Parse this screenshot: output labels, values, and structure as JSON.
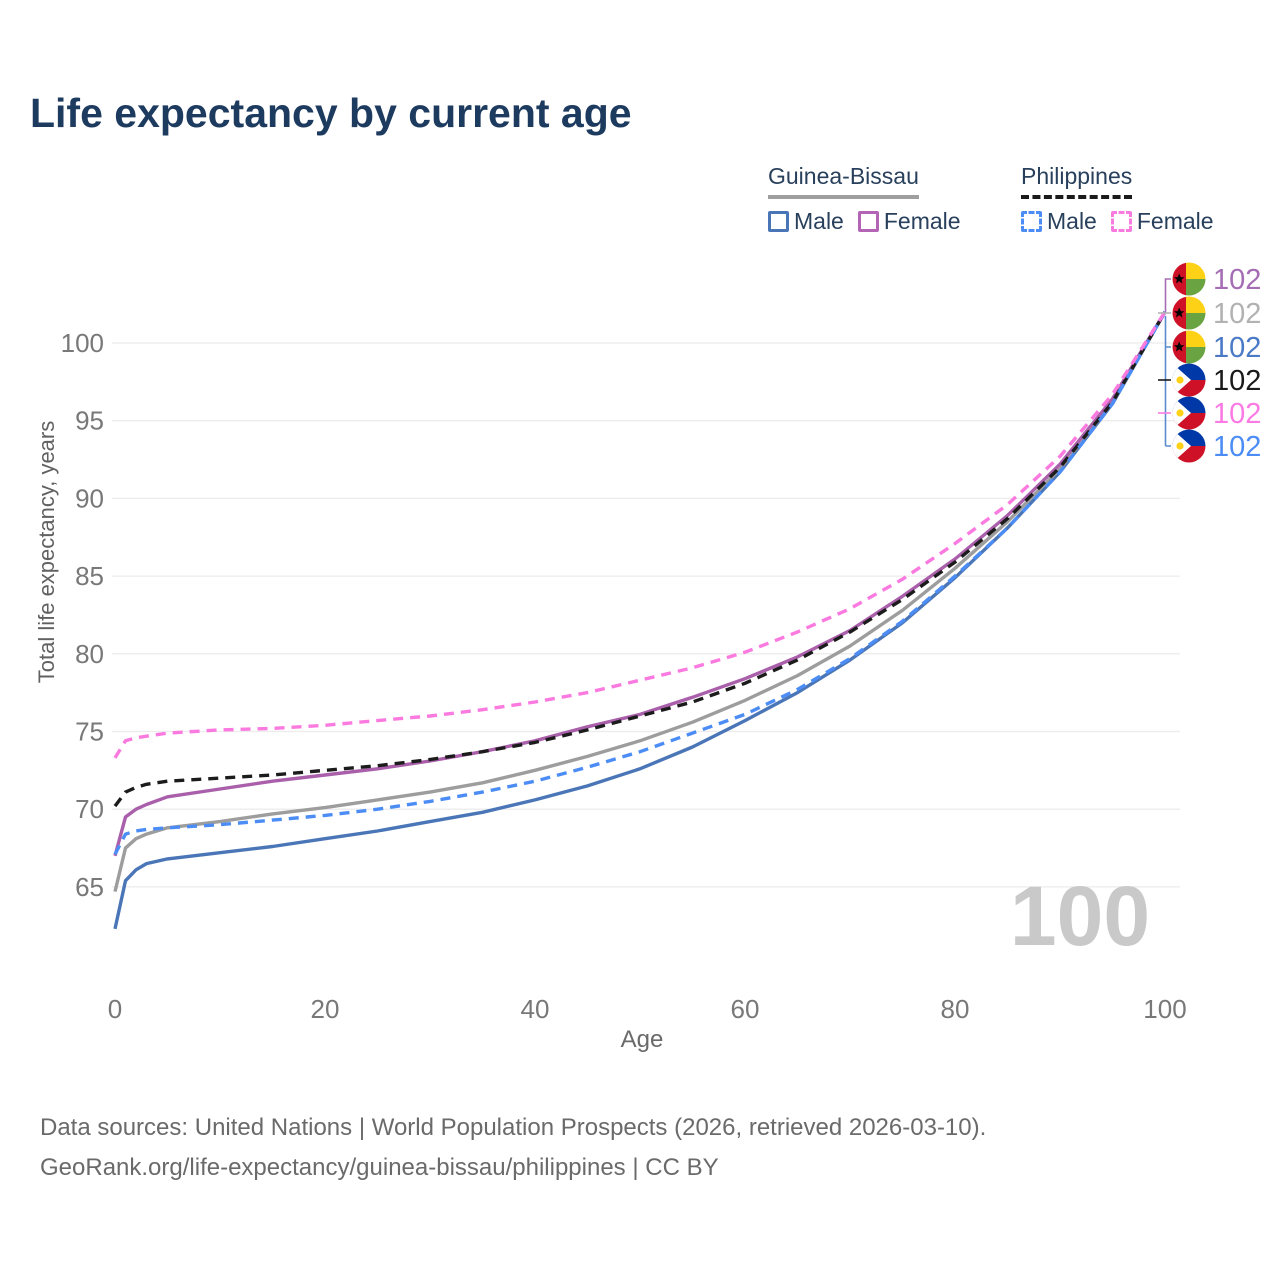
{
  "title": "Life expectancy by current age",
  "legend": {
    "groups": [
      {
        "label": "Guinea-Bissau",
        "underline": "solid",
        "items": [
          {
            "label": "Male",
            "color": "#4a76b8",
            "dash": false
          },
          {
            "label": "Female",
            "color": "#b464b4",
            "dash": false
          }
        ]
      },
      {
        "label": "Philippines",
        "underline": "dashed",
        "items": [
          {
            "label": "Male",
            "color": "#4c8df5",
            "dash": true
          },
          {
            "label": "Female",
            "color": "#fa7ae0",
            "dash": true
          }
        ]
      }
    ]
  },
  "watermark": "100",
  "footer": {
    "line1": "Data sources: United Nations | World Population Prospects (2026, retrieved 2026-03-10).",
    "line2": "GeoRank.org/life-expectancy/guinea-bissau/philippines | CC BY"
  },
  "chart_data": {
    "type": "line",
    "title": "Life expectancy by current age",
    "xlabel": "Age",
    "ylabel": "Total life expectancy, years",
    "xlim": [
      0,
      100
    ],
    "ylim": [
      62,
      103
    ],
    "x_ticks": [
      0,
      20,
      40,
      60,
      80,
      100
    ],
    "y_ticks": [
      65,
      70,
      75,
      80,
      85,
      90,
      95,
      100
    ],
    "grid": "horizontal",
    "legend_position": "top-right",
    "x": [
      0,
      1,
      2,
      3,
      5,
      10,
      15,
      20,
      25,
      30,
      35,
      40,
      45,
      50,
      55,
      60,
      65,
      70,
      75,
      80,
      85,
      90,
      95,
      100
    ],
    "series": [
      {
        "name": "Guinea-Bissau Female",
        "country": "Guinea-Bissau",
        "sex": "Female",
        "style": "solid",
        "color": "#aa5fab",
        "flag": "guinea-bissau",
        "end_label": "102",
        "end_label_color": "#a56db4",
        "values": [
          67.0,
          69.5,
          70.0,
          70.3,
          70.8,
          71.3,
          71.8,
          72.2,
          72.6,
          73.1,
          73.7,
          74.4,
          75.3,
          76.1,
          77.2,
          78.4,
          79.8,
          81.5,
          83.7,
          86.1,
          88.9,
          92.2,
          96.4,
          102
        ]
      },
      {
        "name": "Guinea-Bissau Total",
        "country": "Guinea-Bissau",
        "sex": "Both",
        "style": "solid",
        "color": "#9d9d9d",
        "flag": "guinea-bissau",
        "end_label": "102",
        "end_label_color": "#b2b2b2",
        "values": [
          64.7,
          67.5,
          68.1,
          68.4,
          68.8,
          69.2,
          69.7,
          70.1,
          70.6,
          71.1,
          71.7,
          72.5,
          73.4,
          74.4,
          75.6,
          77.0,
          78.6,
          80.5,
          82.8,
          85.5,
          88.5,
          91.9,
          96.2,
          102
        ]
      },
      {
        "name": "Guinea-Bissau Male",
        "country": "Guinea-Bissau",
        "sex": "Male",
        "style": "solid",
        "color": "#4a76b8",
        "flag": "guinea-bissau",
        "end_label": "102",
        "end_label_color": "#4a79c6",
        "values": [
          62.3,
          65.4,
          66.1,
          66.5,
          66.8,
          67.2,
          67.6,
          68.1,
          68.6,
          69.2,
          69.8,
          70.6,
          71.5,
          72.6,
          74.0,
          75.7,
          77.5,
          79.6,
          82.0,
          84.9,
          88.1,
          91.7,
          96.1,
          102
        ]
      },
      {
        "name": "Philippines Total",
        "country": "Philippines",
        "sex": "Both",
        "style": "dashed",
        "color": "#1c1c1c",
        "flag": "philippines",
        "end_label": "102",
        "end_label_color": "#1a1a1a",
        "values": [
          70.2,
          71.1,
          71.4,
          71.6,
          71.8,
          72.0,
          72.2,
          72.5,
          72.8,
          73.2,
          73.7,
          74.3,
          75.1,
          76.0,
          76.9,
          78.1,
          79.6,
          81.4,
          83.5,
          85.9,
          88.7,
          92.0,
          96.2,
          102
        ]
      },
      {
        "name": "Philippines Female",
        "country": "Philippines",
        "sex": "Female",
        "style": "dashed",
        "color": "#fa7ae0",
        "flag": "philippines",
        "end_label": "102",
        "end_label_color": "#fb7ae3",
        "values": [
          73.3,
          74.4,
          74.6,
          74.7,
          74.9,
          75.1,
          75.2,
          75.4,
          75.7,
          76.0,
          76.4,
          76.9,
          77.5,
          78.3,
          79.1,
          80.1,
          81.4,
          82.9,
          84.8,
          87.1,
          89.6,
          92.7,
          96.7,
          102
        ]
      },
      {
        "name": "Philippines Male",
        "country": "Philippines",
        "sex": "Male",
        "style": "dashed",
        "color": "#4c8df5",
        "flag": "philippines",
        "end_label": "102",
        "end_label_color": "#4c8df5",
        "values": [
          67.1,
          68.4,
          68.6,
          68.7,
          68.8,
          69.0,
          69.3,
          69.6,
          70.0,
          70.5,
          71.1,
          71.8,
          72.7,
          73.7,
          74.9,
          76.1,
          77.7,
          79.7,
          82.1,
          85.0,
          88.1,
          91.7,
          96.1,
          102
        ]
      }
    ]
  }
}
